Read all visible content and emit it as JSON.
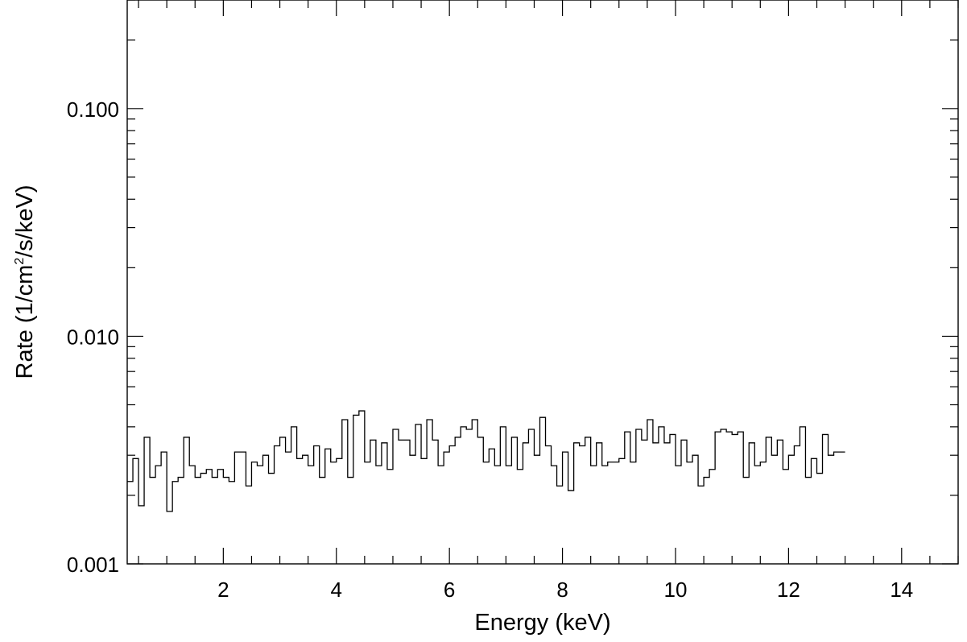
{
  "chart_data": {
    "type": "line",
    "style": "step histogram",
    "title": "",
    "xlabel": "Energy (keV)",
    "ylabel_parts": [
      "Rate (1/cm",
      "2",
      "/s/keV)"
    ],
    "xlim": [
      0.3,
      15.0
    ],
    "ylim": [
      0.001,
      0.3
    ],
    "yscale": "log",
    "grid": false,
    "x_ticks": [
      2,
      4,
      6,
      8,
      10,
      12,
      14
    ],
    "x_tick_labels": [
      "2",
      "4",
      "6",
      "8",
      "10",
      "12",
      "14"
    ],
    "y_ticks": [
      0.001,
      0.01,
      0.1
    ],
    "y_tick_labels": [
      "0.001",
      "0.010",
      "0.100"
    ],
    "bin_width_keV": 0.1,
    "bin_start_keV": 0.3,
    "values": [
      0.0023,
      0.0029,
      0.0018,
      0.0036,
      0.0024,
      0.0027,
      0.0031,
      0.0017,
      0.0023,
      0.0024,
      0.0036,
      0.0027,
      0.0024,
      0.0025,
      0.0026,
      0.0024,
      0.0026,
      0.0024,
      0.0023,
      0.0031,
      0.0031,
      0.0022,
      0.0028,
      0.0027,
      0.003,
      0.0025,
      0.0033,
      0.0036,
      0.0031,
      0.004,
      0.0029,
      0.003,
      0.0027,
      0.0033,
      0.0024,
      0.0032,
      0.0028,
      0.0029,
      0.0043,
      0.0024,
      0.0045,
      0.0047,
      0.0028,
      0.0035,
      0.0027,
      0.0034,
      0.0026,
      0.0039,
      0.0035,
      0.0035,
      0.003,
      0.0041,
      0.0029,
      0.0043,
      0.0035,
      0.0027,
      0.0031,
      0.0033,
      0.0036,
      0.004,
      0.0039,
      0.0043,
      0.0036,
      0.0028,
      0.0032,
      0.0027,
      0.004,
      0.0027,
      0.0036,
      0.0026,
      0.0034,
      0.0039,
      0.003,
      0.0044,
      0.0033,
      0.0027,
      0.0022,
      0.0031,
      0.0021,
      0.0034,
      0.0033,
      0.0036,
      0.0027,
      0.0034,
      0.0027,
      0.0028,
      0.0028,
      0.0029,
      0.0038,
      0.0028,
      0.0039,
      0.0035,
      0.0043,
      0.0034,
      0.004,
      0.0034,
      0.0037,
      0.0027,
      0.0035,
      0.0028,
      0.003,
      0.0022,
      0.0024,
      0.0026,
      0.0038,
      0.0039,
      0.0038,
      0.0037,
      0.0038,
      0.0024,
      0.0034,
      0.0027,
      0.0028,
      0.0036,
      0.003,
      0.0035,
      0.0026,
      0.003,
      0.0033,
      0.004,
      0.0024,
      0.0029,
      0.0025,
      0.0037,
      0.003,
      0.0031,
      0.0031
    ]
  }
}
